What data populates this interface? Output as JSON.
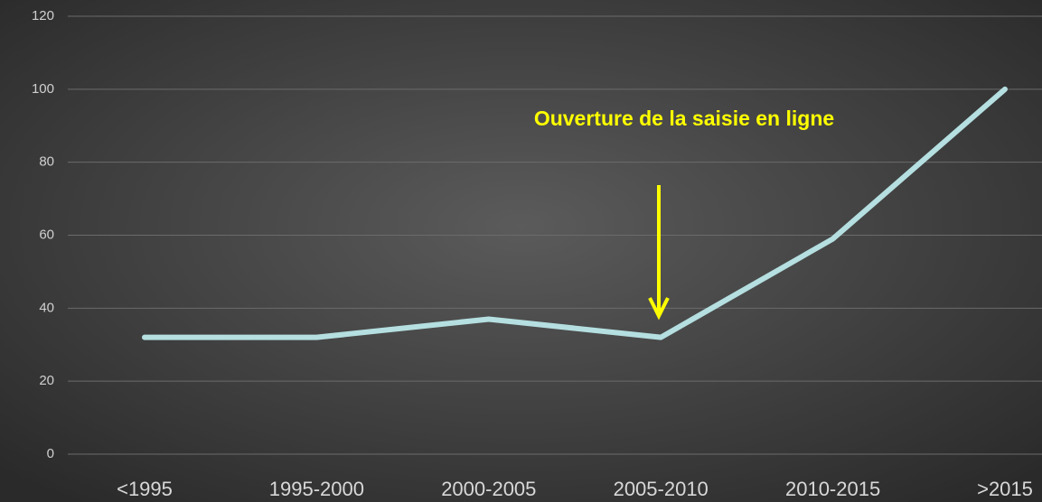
{
  "chart_data": {
    "type": "line",
    "categories": [
      "<1995",
      "1995-2000",
      "2000-2005",
      "2005-2010",
      "2010-2015",
      ">2015"
    ],
    "series": [
      {
        "name": null,
        "color": "#b5dfe0",
        "values": [
          32,
          32,
          37,
          32,
          59,
          100
        ]
      }
    ],
    "ylim": [
      0,
      120
    ],
    "yticks": [
      0,
      20,
      40,
      60,
      80,
      100,
      120
    ],
    "grid": true,
    "annotations": [
      {
        "text": "Ouverture de la saisie en ligne"
      }
    ]
  }
}
